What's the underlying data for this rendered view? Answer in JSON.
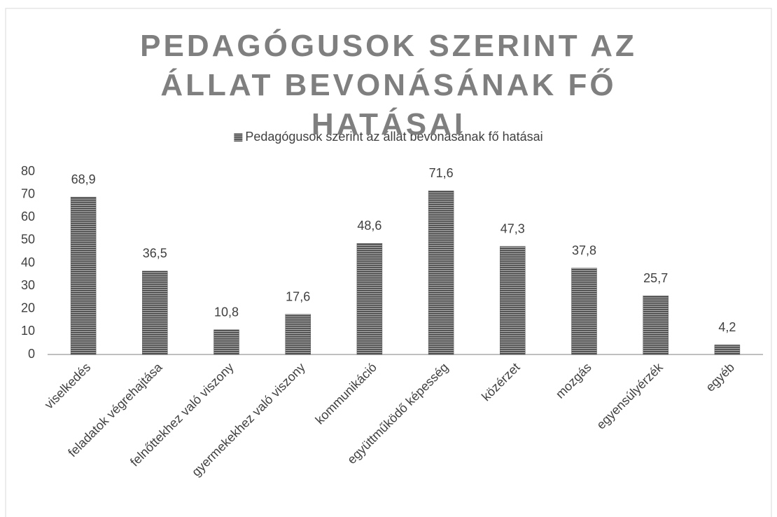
{
  "chart_data": {
    "type": "bar",
    "title": "PEDAGÓGUSOK SZERINT AZ ÁLLAT BEVONÁSÁNAK FŐ HATÁSAI",
    "categories": [
      "viselkedés",
      "feladatok végrehajtása",
      "felnőttekhez való viszony",
      "gyermekekhez való viszony",
      "kommunikáció",
      "együttműködő képesség",
      "közérzet",
      "mozgás",
      "egyensúlyérzék",
      "egyéb"
    ],
    "series": [
      {
        "name": "Pedagógusok szerint az állat bevonásának fő hatásai",
        "color": "#595959",
        "values": [
          68.9,
          36.5,
          10.8,
          17.6,
          48.6,
          71.6,
          47.3,
          37.8,
          25.7,
          4.2
        ],
        "value_labels": [
          "68,9",
          "36,5",
          "10,8",
          "17,6",
          "48,6",
          "71,6",
          "47,3",
          "37,8",
          "25,7",
          "4,2"
        ]
      }
    ],
    "ylim": [
      0,
      80
    ],
    "yticks": [
      0,
      10,
      20,
      30,
      40,
      50,
      60,
      70,
      80
    ],
    "grid": false,
    "legend": "top"
  }
}
